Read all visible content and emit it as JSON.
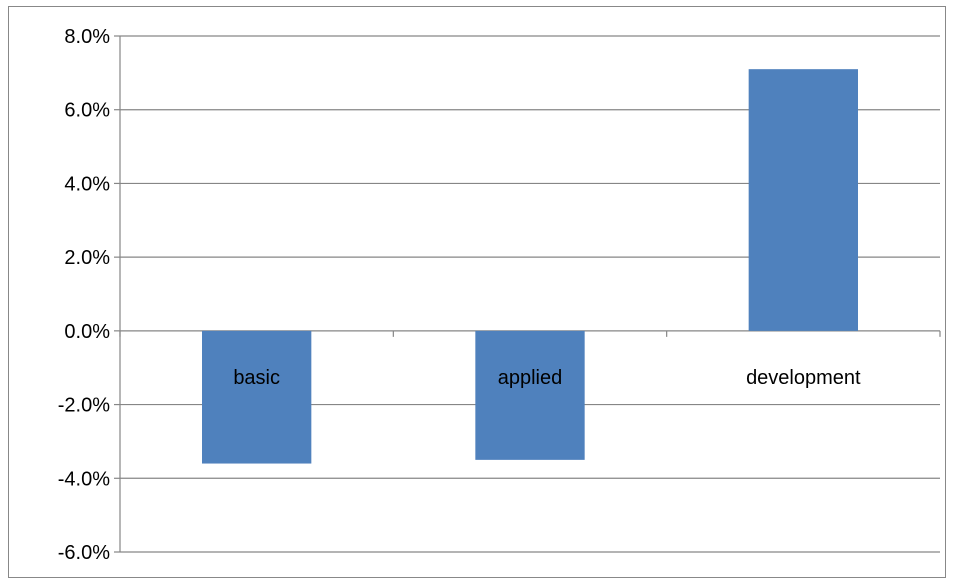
{
  "chart_data": {
    "type": "bar",
    "categories": [
      "basic",
      "applied",
      "development"
    ],
    "values": [
      -3.6,
      -3.5,
      7.1
    ],
    "value_format": "percent",
    "ylim": [
      -6.0,
      8.0
    ],
    "ytick_labels": [
      "8.0%",
      "6.0%",
      "4.0%",
      "2.0%",
      "0.0%",
      "-2.0%",
      "-4.0%",
      "-6.0%"
    ],
    "ytick_values": [
      8,
      6,
      4,
      2,
      0,
      -2,
      -4,
      -6
    ],
    "grid": true,
    "legend": "none",
    "bar_color": "#4F81BD",
    "gridline_color": "#868686"
  }
}
